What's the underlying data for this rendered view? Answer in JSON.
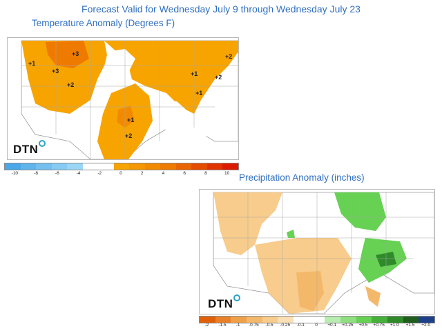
{
  "header": {
    "title": "Forecast Valid for Wednesday July 9 through Wednesday July 23"
  },
  "temperature": {
    "title": "Temperature Anomaly (Degrees F)",
    "logo": "DTN",
    "labels": [
      "+3",
      "+1",
      "+3",
      "+2",
      "+1",
      "+1",
      "+2",
      "+2",
      "+1",
      "+2",
      "+1"
    ],
    "legend": {
      "colors": [
        "#4aa8e8",
        "#5fb4ec",
        "#73c0f0",
        "#86cbf3",
        "#9ad6f6",
        "#ffffff",
        "#ffffff",
        "#f7a400",
        "#f59700",
        "#f28a00",
        "#ef7a00",
        "#ea6400",
        "#e54c00",
        "#e03300",
        "#db1a00"
      ],
      "ticks": [
        "-10",
        "-8",
        "-6",
        "-4",
        "-2",
        "0",
        "2",
        "4",
        "6",
        "8",
        "10"
      ]
    }
  },
  "precipitation": {
    "title": "Precipitation Anomaly (inches)",
    "logo": "DTN",
    "legend": {
      "colors": [
        "#e0600a",
        "#e8802a",
        "#efa04a",
        "#f4b86a",
        "#f8cc8c",
        "#fbe0b5",
        "#ffffff",
        "#ffffff",
        "#b8ecb0",
        "#8fdf80",
        "#66d153",
        "#45b03a",
        "#2f8a2a",
        "#1f5e1f",
        "#1e3f8a"
      ],
      "ticks": [
        "-2",
        "-1.5",
        "-1",
        "-0.75",
        "-0.5",
        "-0.25",
        "-0.1",
        "0",
        "+0.1",
        "+0.25",
        "+0.5",
        "+0.75",
        "+1.0",
        "+1.5",
        "+2.0"
      ]
    }
  }
}
